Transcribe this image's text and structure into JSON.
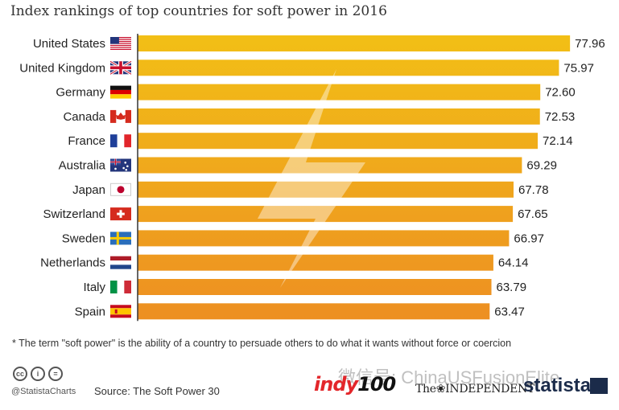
{
  "title": "Index rankings of top countries for soft power in 2016",
  "footnote": "* The term \"soft power\" is the ability of a country to persuade others to do what it wants without force or coercion",
  "footer": {
    "handle": "@StatistaCharts",
    "source": "Source: The Soft Power 30",
    "cc_icons": [
      "cc",
      "i",
      "="
    ],
    "logo_indy_prefix": "indy",
    "logo_indy_number": "100",
    "logo_independent": "The❀INDEPENDENT",
    "logo_statista": "statista",
    "watermark": "微信号: ChinaUSFusionElite"
  },
  "colors": {
    "bar_top": "#f2bf16",
    "bar_bottom": "#ed8f22",
    "axis": "#333333",
    "text": "#222222"
  },
  "chart_data": {
    "type": "bar",
    "orientation": "horizontal",
    "title": "Index rankings of top countries for soft power in 2016",
    "xlabel": "",
    "ylabel": "",
    "xlim": [
      0,
      80
    ],
    "categories": [
      "United States",
      "United Kingdom",
      "Germany",
      "Canada",
      "France",
      "Australia",
      "Japan",
      "Switzerland",
      "Sweden",
      "Netherlands",
      "Italy",
      "Spain"
    ],
    "values": [
      77.96,
      75.97,
      72.6,
      72.53,
      72.14,
      69.29,
      67.78,
      67.65,
      66.97,
      64.14,
      63.79,
      63.47
    ],
    "value_labels": [
      "77.96",
      "75.97",
      "72.60",
      "72.53",
      "72.14",
      "69.29",
      "67.78",
      "67.65",
      "66.97",
      "64.14",
      "63.79",
      "63.47"
    ],
    "flags": [
      "us-flag",
      "uk-flag",
      "germany-flag",
      "canada-flag",
      "france-flag",
      "australia-flag",
      "japan-flag",
      "switzerland-flag",
      "sweden-flag",
      "netherlands-flag",
      "italy-flag",
      "spain-flag"
    ]
  }
}
